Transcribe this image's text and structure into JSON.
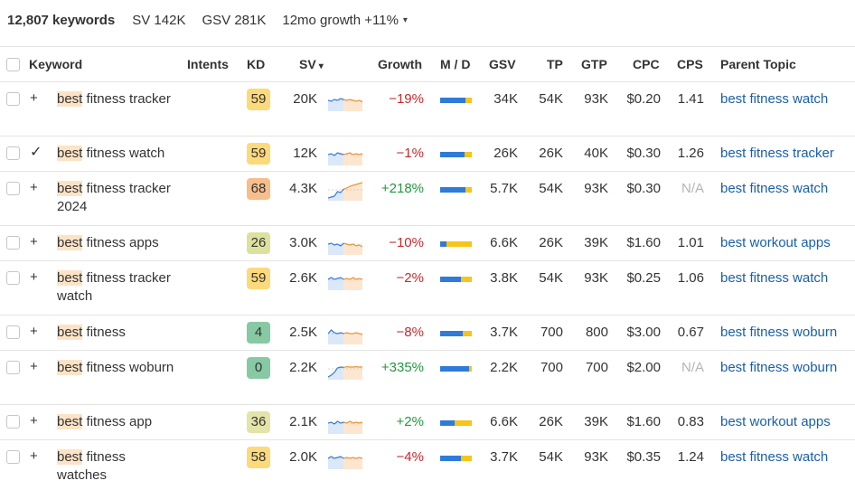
{
  "summary": {
    "count": "12,807 keywords",
    "sv": "SV 142K",
    "gsv": "GSV 281K",
    "growth": "12mo growth +11%",
    "caret": "▾"
  },
  "headers": {
    "keyword": "Keyword",
    "intents": "Intents",
    "kd": "KD",
    "sv": "SV",
    "sv_sort": "▾",
    "growth": "Growth",
    "md": "M / D",
    "gsv": "GSV",
    "tp": "TP",
    "gtp": "GTP",
    "cpc": "CPC",
    "cps": "CPS",
    "parent_topic": "Parent Topic"
  },
  "colors": {
    "kd_easy": "#86c9a3",
    "kd_yellow_green": "#dde19e",
    "kd_light": "#e2e4a8",
    "kd_medium": "#fcd97a",
    "kd_hard": "#f7be8c",
    "link": "#1a5fa8",
    "negative": "#c8272d",
    "positive": "#1f9a3c"
  },
  "rows": [
    {
      "hl": "best",
      "rest": " fitness tracker",
      "icon": "plus",
      "kd": "59",
      "kd_color": "#fcd97a",
      "sv": "20K",
      "growth": "−19%",
      "growth_sign": "neg",
      "mobile_share": 0.8,
      "gsv": "34K",
      "tp": "54K",
      "gtp": "93K",
      "cpc": "$0.20",
      "cps": "1.41",
      "parent": "best fitness watch",
      "trend": [
        0.5,
        0.45,
        0.55,
        0.5,
        0.6,
        0.55,
        0.5,
        0.55,
        0.5,
        0.45,
        0.5,
        0.4
      ]
    },
    {
      "hl": "best",
      "rest": " fitness watch",
      "icon": "check",
      "kd": "59",
      "kd_color": "#fcd97a",
      "sv": "12K",
      "growth": "−1%",
      "growth_sign": "neg",
      "mobile_share": 0.78,
      "gsv": "26K",
      "tp": "26K",
      "gtp": "40K",
      "cpc": "$0.30",
      "cps": "1.26",
      "parent": "best fitness tracker",
      "trend": [
        0.5,
        0.55,
        0.45,
        0.6,
        0.55,
        0.5,
        0.55,
        0.6,
        0.5,
        0.55,
        0.5,
        0.55
      ]
    },
    {
      "hl": "best",
      "rest": " fitness tracker 2024",
      "icon": "plus",
      "kd": "68",
      "kd_color": "#f7be8c",
      "sv": "4.3K",
      "growth": "+218%",
      "growth_sign": "pos",
      "mobile_share": 0.8,
      "gsv": "5.7K",
      "tp": "54K",
      "gtp": "93K",
      "cpc": "$0.30",
      "cps": "N/A",
      "parent": "best fitness watch",
      "trend": [
        0.05,
        0.1,
        0.15,
        0.4,
        0.35,
        0.55,
        0.6,
        0.7,
        0.75,
        0.8,
        0.85,
        0.9
      ]
    },
    {
      "hl": "best",
      "rest": " fitness apps",
      "icon": "plus",
      "kd": "26",
      "kd_color": "#dde19e",
      "sv": "3.0K",
      "growth": "−10%",
      "growth_sign": "neg",
      "mobile_share": 0.2,
      "gsv": "6.6K",
      "tp": "26K",
      "gtp": "39K",
      "cpc": "$1.60",
      "cps": "1.01",
      "parent": "best workout apps",
      "trend": [
        0.5,
        0.55,
        0.45,
        0.5,
        0.4,
        0.55,
        0.5,
        0.45,
        0.5,
        0.4,
        0.45,
        0.35
      ]
    },
    {
      "hl": "best",
      "rest": " fitness tracker watch",
      "icon": "plus",
      "kd": "59",
      "kd_color": "#fcd97a",
      "sv": "2.6K",
      "growth": "−2%",
      "growth_sign": "neg",
      "mobile_share": 0.65,
      "gsv": "3.8K",
      "tp": "54K",
      "gtp": "93K",
      "cpc": "$0.25",
      "cps": "1.06",
      "parent": "best fitness watch",
      "trend": [
        0.5,
        0.6,
        0.5,
        0.55,
        0.6,
        0.5,
        0.55,
        0.5,
        0.6,
        0.5,
        0.55,
        0.5
      ]
    },
    {
      "hl": "best",
      "rest": " fitness",
      "icon": "plus",
      "kd": "4",
      "kd_color": "#86c9a3",
      "sv": "2.5K",
      "growth": "−8%",
      "growth_sign": "neg",
      "mobile_share": 0.72,
      "gsv": "3.7K",
      "tp": "700",
      "gtp": "800",
      "cpc": "$3.00",
      "cps": "0.67",
      "parent": "best fitness woburn",
      "trend": [
        0.5,
        0.7,
        0.55,
        0.5,
        0.55,
        0.5,
        0.55,
        0.5,
        0.5,
        0.55,
        0.5,
        0.45
      ]
    },
    {
      "hl": "best",
      "rest": " fitness woburn",
      "icon": "plus",
      "kd": "0",
      "kd_color": "#86c9a3",
      "sv": "2.2K",
      "growth": "+335%",
      "growth_sign": "pos",
      "mobile_share": 0.9,
      "gsv": "2.2K",
      "tp": "700",
      "gtp": "700",
      "cpc": "$2.00",
      "cps": "N/A",
      "parent": "best fitness woburn",
      "trend": [
        0.05,
        0.15,
        0.3,
        0.55,
        0.6,
        0.58,
        0.62,
        0.6,
        0.6,
        0.62,
        0.6,
        0.6
      ]
    },
    {
      "hl": "best",
      "rest": " fitness app",
      "icon": "plus",
      "kd": "36",
      "kd_color": "#e2e4a8",
      "sv": "2.1K",
      "growth": "+2%",
      "growth_sign": "pos",
      "mobile_share": 0.45,
      "gsv": "6.6K",
      "tp": "26K",
      "gtp": "39K",
      "cpc": "$1.60",
      "cps": "0.83",
      "parent": "best workout apps",
      "trend": [
        0.5,
        0.55,
        0.45,
        0.6,
        0.5,
        0.55,
        0.5,
        0.6,
        0.5,
        0.55,
        0.5,
        0.55
      ]
    },
    {
      "hl": "best",
      "rest": " fitness watches",
      "icon": "plus",
      "kd": "58",
      "kd_color": "#fcd97a",
      "sv": "2.0K",
      "growth": "−4%",
      "growth_sign": "neg",
      "mobile_share": 0.65,
      "gsv": "3.7K",
      "tp": "54K",
      "gtp": "93K",
      "cpc": "$0.35",
      "cps": "1.24",
      "parent": "best fitness watch",
      "trend": [
        0.5,
        0.6,
        0.5,
        0.55,
        0.6,
        0.5,
        0.55,
        0.5,
        0.55,
        0.5,
        0.55,
        0.5
      ]
    }
  ]
}
